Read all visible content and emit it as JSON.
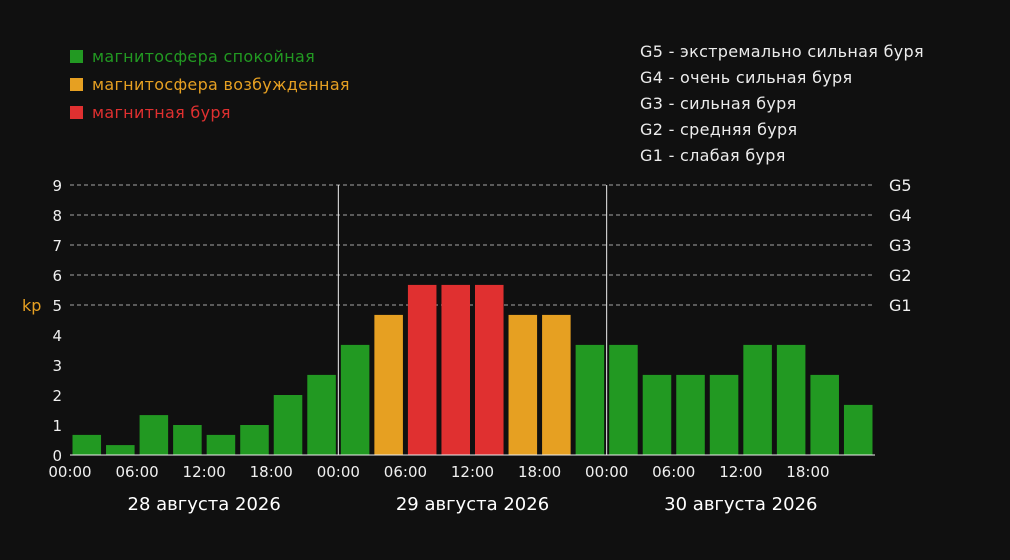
{
  "legend": {
    "items": [
      {
        "label": "магнитосфера спокойная",
        "color": "#229922"
      },
      {
        "label": "магнитосфера возбужденная",
        "color": "#e6a022"
      },
      {
        "label": "магнитная буря",
        "color": "#e03030"
      }
    ]
  },
  "storm_scale": [
    "G5 - экстремально сильная буря",
    "G4 - очень сильная буря",
    "G3 - сильная буря",
    "G2 - средняя буря",
    "G1 - слабая буря"
  ],
  "chart_data": {
    "type": "bar",
    "ylabel": "kp",
    "ylim": [
      0,
      9
    ],
    "yticks": [
      "0",
      "1",
      "2",
      "3",
      "4",
      "5",
      "6",
      "7",
      "8",
      "9"
    ],
    "g_levels": [
      {
        "label": "G1",
        "kp": 5
      },
      {
        "label": "G2",
        "kp": 6
      },
      {
        "label": "G3",
        "kp": 7
      },
      {
        "label": "G4",
        "kp": 8
      },
      {
        "label": "G5",
        "kp": 9
      }
    ],
    "days": [
      "28 августа 2026",
      "29 августа 2026",
      "30 августа 2026"
    ],
    "xticks": [
      "00:00",
      "06:00",
      "12:00",
      "18:00"
    ],
    "intervals_per_day": 8,
    "values": [
      0.67,
      0.33,
      1.33,
      1.0,
      0.67,
      1.0,
      2.0,
      2.67,
      3.67,
      4.67,
      5.67,
      5.67,
      5.67,
      4.67,
      4.67,
      3.67,
      3.67,
      2.67,
      2.67,
      2.67,
      3.67,
      3.67,
      2.67,
      1.67
    ],
    "colors": {
      "quiet": "#229922",
      "active": "#e6a022",
      "storm": "#e03030"
    },
    "grid": true
  }
}
